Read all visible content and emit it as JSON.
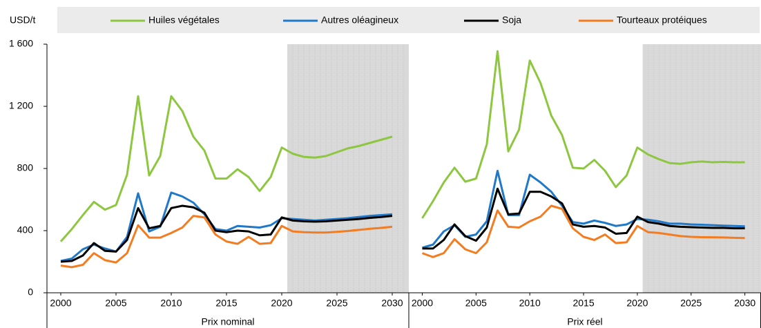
{
  "chart_data": {
    "type": "line",
    "ylabel": "USD/t",
    "ylim": [
      0,
      1600
    ],
    "yticks": [
      0,
      400,
      800,
      {
        "value": 1200,
        "label": "1 200"
      },
      {
        "value": 1600,
        "label": "1 600"
      }
    ],
    "xlim": [
      1998.75,
      2031.5
    ],
    "xticks": [
      2000,
      2005,
      2010,
      2015,
      2020,
      2025,
      2030
    ],
    "shade_from": 2020.5,
    "shade_color": "#d9d9d9",
    "legend": [
      {
        "name": "Huiles végétales",
        "color": "#8dc63f"
      },
      {
        "name": "Autres oléagineux",
        "color": "#1f78c8"
      },
      {
        "name": "Soja",
        "color": "#000000"
      },
      {
        "name": "Tourteaux protéiques",
        "color": "#f47c20"
      }
    ],
    "x": [
      2000,
      2001,
      2002,
      2003,
      2004,
      2005,
      2006,
      2007,
      2008,
      2009,
      2010,
      2011,
      2012,
      2013,
      2014,
      2015,
      2016,
      2017,
      2018,
      2019,
      2020,
      2021,
      2022,
      2023,
      2024,
      2025,
      2026,
      2027,
      2028,
      2029,
      2030
    ],
    "panels": [
      {
        "xlabel": "Prix nominal",
        "series": [
          {
            "values": [
              330,
              410,
              500,
              585,
              535,
              565,
              760,
              1265,
              755,
              880,
              1265,
              1170,
              1005,
              915,
              735,
              735,
              795,
              745,
              655,
              745,
              935,
              895,
              875,
              870,
              880,
              905,
              930,
              945,
              965,
              985,
              1005
            ]
          },
          {
            "values": [
              205,
              220,
              280,
              310,
              285,
              265,
              360,
              640,
              395,
              425,
              645,
              620,
              580,
              505,
              410,
              400,
              430,
              425,
              420,
              435,
              480,
              475,
              470,
              465,
              470,
              475,
              480,
              488,
              495,
              500,
              505
            ]
          },
          {
            "values": [
              200,
              205,
              240,
              320,
              270,
              265,
              340,
              545,
              415,
              430,
              545,
              560,
              550,
              515,
              400,
              390,
              400,
              395,
              370,
              375,
              485,
              465,
              460,
              458,
              460,
              465,
              470,
              475,
              482,
              488,
              495
            ]
          },
          {
            "values": [
              175,
              165,
              180,
              255,
              210,
              195,
              255,
              435,
              355,
              355,
              385,
              420,
              495,
              485,
              375,
              330,
              315,
              360,
              315,
              320,
              430,
              395,
              390,
              388,
              388,
              392,
              398,
              405,
              412,
              418,
              425
            ]
          }
        ]
      },
      {
        "xlabel": "Prix réel",
        "series": [
          {
            "values": [
              480,
              590,
              710,
              805,
              715,
              735,
              955,
              1555,
              910,
              1050,
              1495,
              1350,
              1140,
              1015,
              805,
              800,
              855,
              785,
              680,
              755,
              935,
              890,
              860,
              835,
              830,
              840,
              845,
              840,
              842,
              840,
              840
            ]
          },
          {
            "values": [
              290,
              310,
              395,
              435,
              360,
              375,
              460,
              785,
              500,
              500,
              760,
              710,
              650,
              560,
              455,
              445,
              465,
              450,
              430,
              440,
              475,
              470,
              460,
              445,
              445,
              440,
              438,
              435,
              432,
              430,
              428
            ]
          },
          {
            "values": [
              285,
              285,
              340,
              440,
              365,
              335,
              420,
              670,
              505,
              510,
              650,
              650,
              620,
              575,
              440,
              425,
              430,
              420,
              380,
              385,
              490,
              455,
              445,
              430,
              425,
              422,
              420,
              418,
              418,
              415,
              415
            ]
          },
          {
            "values": [
              255,
              230,
              255,
              345,
              280,
              255,
              325,
              530,
              425,
              420,
              460,
              490,
              560,
              540,
              415,
              360,
              340,
              375,
              320,
              325,
              430,
              390,
              385,
              375,
              365,
              360,
              358,
              357,
              356,
              354,
              352
            ]
          }
        ]
      }
    ]
  }
}
